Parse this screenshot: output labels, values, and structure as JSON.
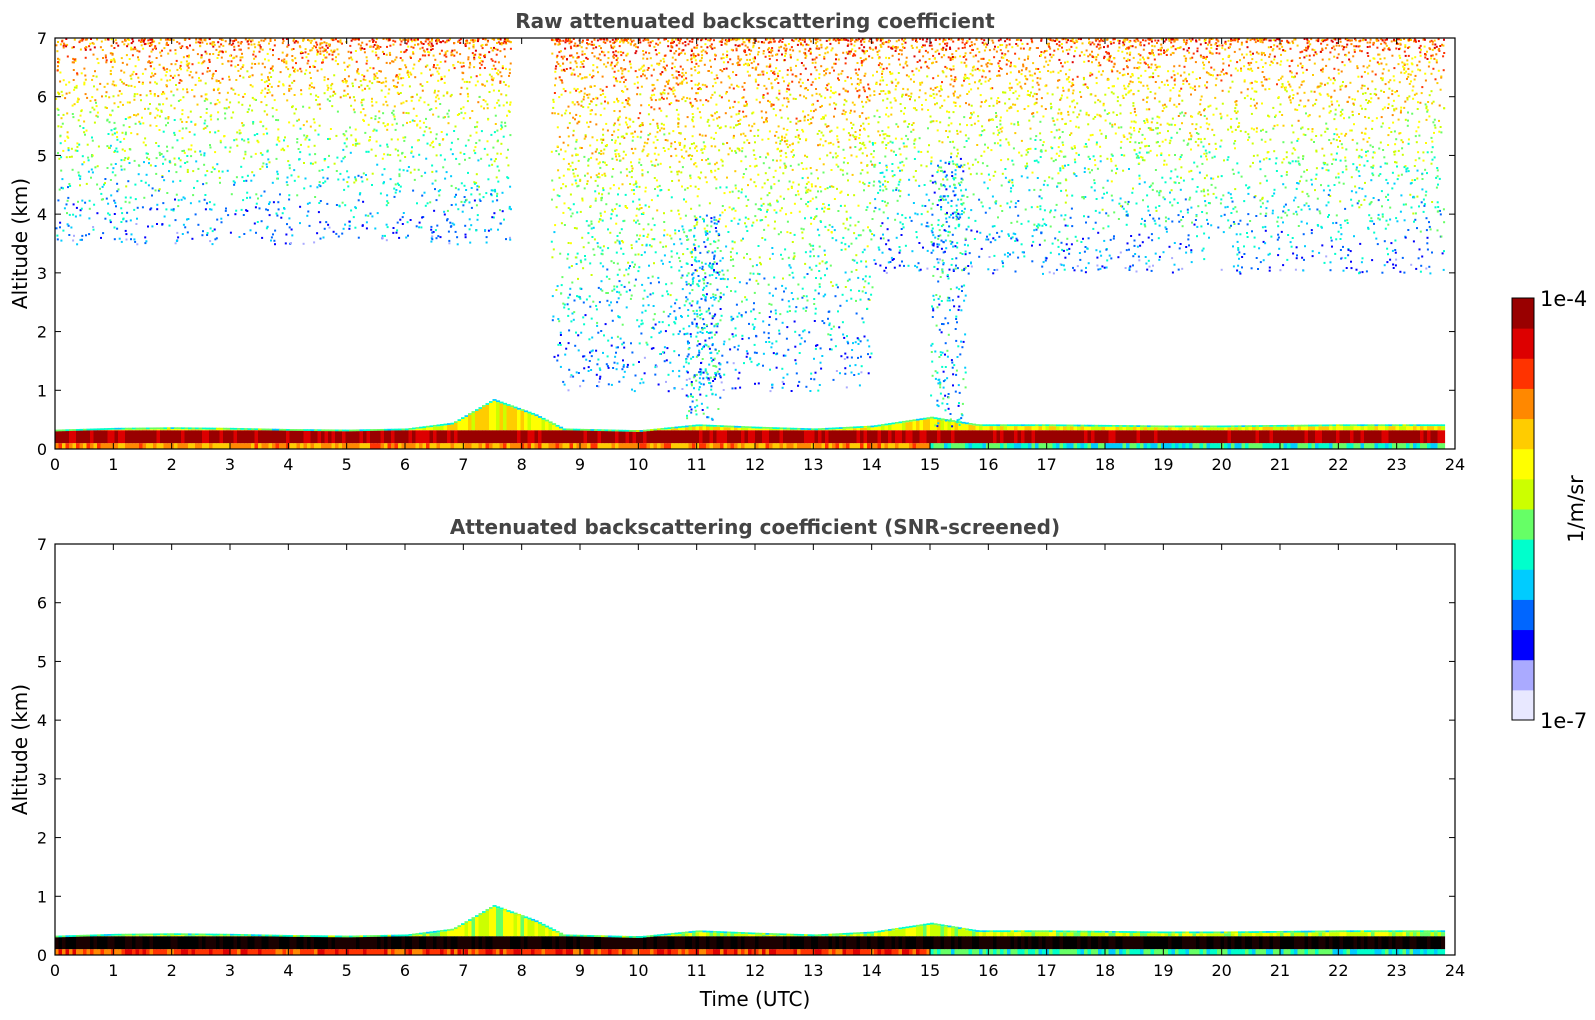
{
  "chart_data": [
    {
      "type": "heatmap",
      "title": "Raw attenuated backscattering coefficient",
      "xlabel": "",
      "ylabel": "Altitude (km)",
      "xlim": [
        0,
        24
      ],
      "ylim": [
        0,
        7
      ],
      "x_ticks": [
        "0",
        "1",
        "2",
        "3",
        "4",
        "5",
        "6",
        "7",
        "8",
        "9",
        "10",
        "11",
        "12",
        "13",
        "14",
        "15",
        "16",
        "17",
        "18",
        "19",
        "20",
        "21",
        "22",
        "23",
        "24"
      ],
      "y_ticks": [
        "0",
        "1",
        "2",
        "3",
        "4",
        "5",
        "6",
        "7"
      ],
      "data_time_range": [
        0,
        23.8
      ],
      "boundary_layer": {
        "top_km": [
          [
            0,
            0.33
          ],
          [
            1,
            0.36
          ],
          [
            2,
            0.37
          ],
          [
            3,
            0.36
          ],
          [
            4,
            0.34
          ],
          [
            5,
            0.33
          ],
          [
            6,
            0.35
          ],
          [
            6.8,
            0.45
          ],
          [
            7.5,
            0.85
          ],
          [
            8.2,
            0.6
          ],
          [
            8.7,
            0.35
          ],
          [
            10,
            0.32
          ],
          [
            11,
            0.42
          ],
          [
            12,
            0.38
          ],
          [
            13,
            0.35
          ],
          [
            14,
            0.4
          ],
          [
            15,
            0.55
          ],
          [
            15.8,
            0.42
          ],
          [
            17,
            0.42
          ],
          [
            18,
            0.41
          ],
          [
            19,
            0.4
          ],
          [
            20,
            0.4
          ],
          [
            21,
            0.41
          ],
          [
            22,
            0.42
          ],
          [
            23,
            0.42
          ],
          [
            23.8,
            0.42
          ]
        ],
        "core_layer_km": [
          0.1,
          0.32
        ]
      },
      "sparse_signal": [
        {
          "time_range": [
            0,
            7.8
          ],
          "altitude_range_km": [
            3.5,
            7
          ],
          "intensity": "noise"
        },
        {
          "time_range": [
            8.5,
            14
          ],
          "altitude_range_km": [
            1,
            7
          ],
          "intensity": "noise"
        },
        {
          "time_range": [
            14,
            23.8
          ],
          "altitude_range_km": [
            3,
            7
          ],
          "intensity": "noise"
        },
        {
          "time_range": [
            10.8,
            11.4
          ],
          "altitude_range_km": [
            0.5,
            4
          ],
          "intensity": "precipitation streak"
        },
        {
          "time_range": [
            15,
            15.6
          ],
          "altitude_range_km": [
            0.4,
            5
          ],
          "intensity": "precipitation streak"
        }
      ]
    },
    {
      "type": "heatmap",
      "title": "Attenuated backscattering coefficient (SNR-screened)",
      "xlabel": "Time (UTC)",
      "ylabel": "Altitude (km)",
      "xlim": [
        0,
        24
      ],
      "ylim": [
        0,
        7
      ],
      "x_ticks": [
        "0",
        "1",
        "2",
        "3",
        "4",
        "5",
        "6",
        "7",
        "8",
        "9",
        "10",
        "11",
        "12",
        "13",
        "14",
        "15",
        "16",
        "17",
        "18",
        "19",
        "20",
        "21",
        "22",
        "23",
        "24"
      ],
      "y_ticks": [
        "0",
        "1",
        "2",
        "3",
        "4",
        "5",
        "6",
        "7"
      ],
      "data_time_range": [
        0,
        23.8
      ],
      "boundary_layer": {
        "top_km": [
          [
            0,
            0.33
          ],
          [
            1,
            0.36
          ],
          [
            2,
            0.37
          ],
          [
            3,
            0.36
          ],
          [
            4,
            0.34
          ],
          [
            5,
            0.33
          ],
          [
            6,
            0.35
          ],
          [
            6.8,
            0.45
          ],
          [
            7.5,
            0.85
          ],
          [
            8.2,
            0.6
          ],
          [
            8.7,
            0.35
          ],
          [
            10,
            0.32
          ],
          [
            11,
            0.42
          ],
          [
            12,
            0.38
          ],
          [
            13,
            0.35
          ],
          [
            14,
            0.4
          ],
          [
            15,
            0.55
          ],
          [
            15.8,
            0.42
          ],
          [
            17,
            0.42
          ],
          [
            18,
            0.41
          ],
          [
            19,
            0.4
          ],
          [
            20,
            0.4
          ],
          [
            21,
            0.41
          ],
          [
            22,
            0.42
          ],
          [
            23,
            0.42
          ],
          [
            23.8,
            0.42
          ]
        ],
        "core_layer_km": [
          0.1,
          0.32
        ]
      },
      "sparse_signal": []
    }
  ],
  "colorbar": {
    "label": "1/m/sr",
    "max_label": "1e-4",
    "min_label": "1e-7",
    "scale": "log",
    "colormap": "jet",
    "colors": [
      "#e8e8ff",
      "#aaaaff",
      "#0000ff",
      "#0066ff",
      "#00ccff",
      "#00ffcc",
      "#66ff66",
      "#ccff00",
      "#ffff00",
      "#ffcc00",
      "#ff8800",
      "#ff3300",
      "#dd0000",
      "#990000"
    ]
  }
}
